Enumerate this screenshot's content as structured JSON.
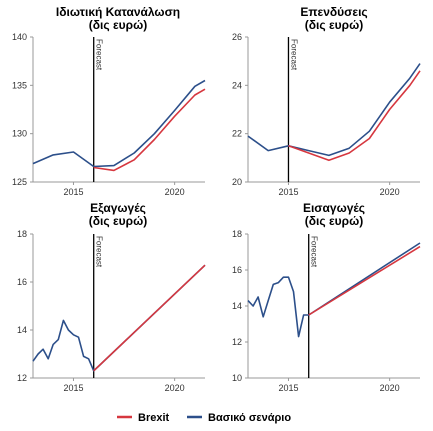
{
  "legend": {
    "brexit_label": "Brexit",
    "baseline_label": "Βασικό σενάριο"
  },
  "colors": {
    "brexit": "#d6373f",
    "baseline": "#2c4f8a",
    "axis": "#999999",
    "forecast_line": "#000000"
  },
  "chart_data": [
    {
      "type": "line",
      "title_line1": "Ιδιωτική Κατανάλωση",
      "title_line2": "(δις ευρώ)",
      "xlim": [
        2013,
        2021.5
      ],
      "ylim": [
        125,
        140
      ],
      "yticks": [
        125,
        130,
        135,
        140
      ],
      "xticks": [
        2015,
        2020
      ],
      "forecast_x": 2016,
      "forecast_label": "Forecast",
      "grid": false,
      "series": [
        {
          "name": "Βασικό σενάριο",
          "color_key": "baseline",
          "x": [
            2013,
            2014,
            2015,
            2016,
            2017,
            2018,
            2019,
            2020,
            2021,
            2021.5
          ],
          "y": [
            126.9,
            127.8,
            128.1,
            126.6,
            126.7,
            128.0,
            130.0,
            132.4,
            134.9,
            135.5
          ]
        },
        {
          "name": "Brexit",
          "color_key": "brexit",
          "x": [
            2016,
            2017,
            2018,
            2019,
            2020,
            2021,
            2021.5
          ],
          "y": [
            126.5,
            126.2,
            127.3,
            129.4,
            131.8,
            134.0,
            134.6
          ]
        }
      ]
    },
    {
      "type": "line",
      "title_line1": "Επενδύσεις",
      "title_line2": "(δις ευρώ)",
      "xlim": [
        2013,
        2021.5
      ],
      "ylim": [
        20,
        26
      ],
      "yticks": [
        20,
        22,
        24,
        26
      ],
      "xticks": [
        2015,
        2020
      ],
      "forecast_x": 2015,
      "forecast_label": "Forecast",
      "grid": false,
      "series": [
        {
          "name": "Βασικό σενάριο",
          "color_key": "baseline",
          "x": [
            2013,
            2014,
            2015,
            2016,
            2017,
            2018,
            2019,
            2020,
            2021,
            2021.5
          ],
          "y": [
            21.9,
            21.3,
            21.5,
            21.3,
            21.1,
            21.4,
            22.1,
            23.3,
            24.3,
            24.9
          ]
        },
        {
          "name": "Brexit",
          "color_key": "brexit",
          "x": [
            2015,
            2016,
            2017,
            2018,
            2019,
            2020,
            2021,
            2021.5
          ],
          "y": [
            21.5,
            21.2,
            20.9,
            21.2,
            21.8,
            23.0,
            24.0,
            24.6
          ]
        }
      ]
    },
    {
      "type": "line",
      "title_line1": "Εξαγωγές",
      "title_line2": "(δις ευρώ)",
      "xlim": [
        2013,
        2021.5
      ],
      "ylim": [
        12,
        18
      ],
      "yticks": [
        12,
        14,
        16,
        18
      ],
      "xticks": [
        2015,
        2020
      ],
      "forecast_x": 2016,
      "forecast_label": "Forecast",
      "grid": false,
      "series": [
        {
          "name": "Βασικό σενάριο",
          "color_key": "baseline",
          "x": [
            2013,
            2013.25,
            2013.5,
            2013.75,
            2014,
            2014.25,
            2014.5,
            2014.75,
            2015,
            2015.25,
            2015.5,
            2015.75,
            2016,
            2016.25,
            2021.5
          ],
          "y": [
            12.7,
            13.0,
            13.2,
            12.8,
            13.4,
            13.6,
            14.4,
            14.0,
            13.8,
            13.7,
            12.9,
            12.8,
            12.3,
            12.5,
            16.7
          ]
        },
        {
          "name": "Brexit",
          "color_key": "brexit",
          "x": [
            2016,
            2021.5
          ],
          "y": [
            12.3,
            16.7
          ]
        }
      ]
    },
    {
      "type": "line",
      "title_line1": "Εισαγωγές",
      "title_line2": "(δις ευρώ)",
      "xlim": [
        2013,
        2021.5
      ],
      "ylim": [
        10,
        18
      ],
      "yticks": [
        10,
        12,
        14,
        16,
        18
      ],
      "xticks": [
        2015,
        2020
      ],
      "forecast_x": 2016,
      "forecast_label": "Forecast",
      "grid": false,
      "series": [
        {
          "name": "Βασικό σενάριο",
          "color_key": "baseline",
          "x": [
            2013,
            2013.25,
            2013.5,
            2013.75,
            2014,
            2014.25,
            2014.5,
            2014.75,
            2015,
            2015.25,
            2015.5,
            2015.75,
            2016,
            2021.5
          ],
          "y": [
            14.3,
            14.0,
            14.5,
            13.4,
            14.3,
            15.2,
            15.3,
            15.6,
            15.6,
            14.8,
            12.3,
            13.5,
            13.5,
            17.5
          ]
        },
        {
          "name": "Brexit",
          "color_key": "brexit",
          "x": [
            2016,
            2021.5
          ],
          "y": [
            13.5,
            17.3
          ]
        }
      ]
    }
  ]
}
